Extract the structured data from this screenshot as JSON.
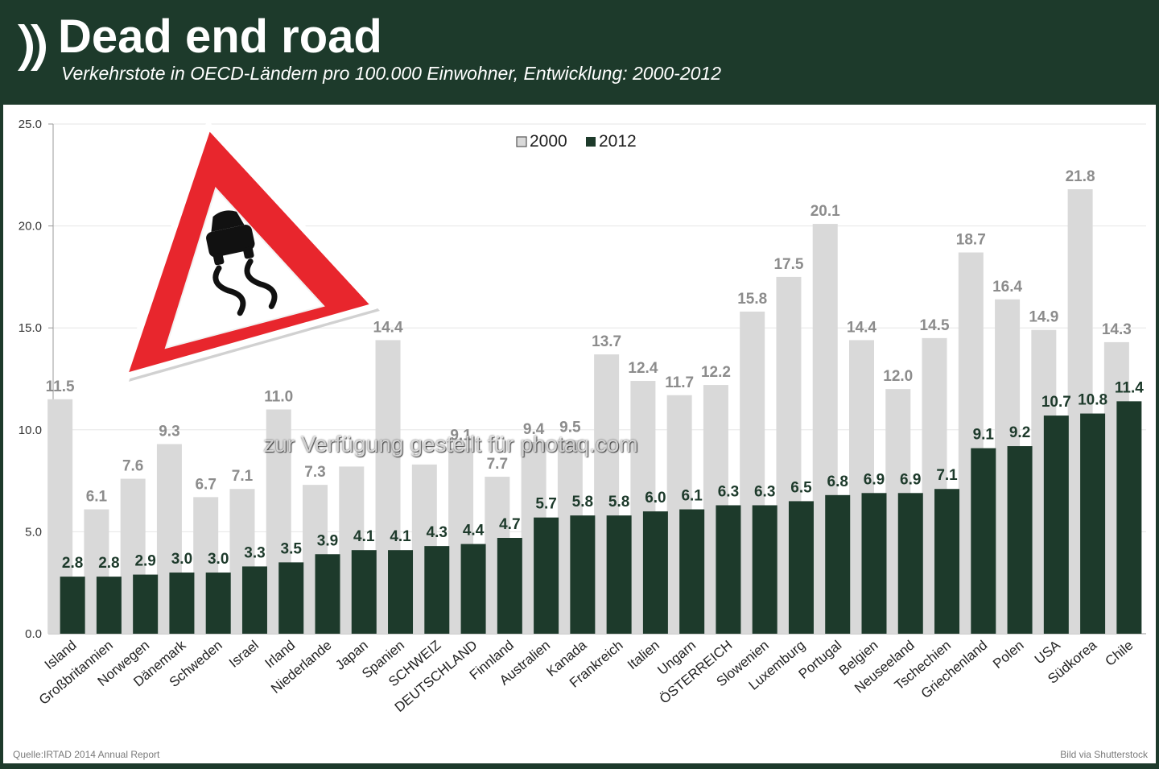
{
  "header": {
    "title": "Dead end road",
    "subtitle": "Verkehrstote in OECD-Ländern pro 100.000 Einwohner, Entwicklung: 2000-2012"
  },
  "footer": {
    "source": "Quelle:IRTAD 2014 Annual Report",
    "credit": "Bild via Shutterstock"
  },
  "watermark": "zur Verfügung gestellt für photaq.com",
  "colors": {
    "background": "#1d3a2b",
    "series_2000": "#d9d9d9",
    "series_2012": "#1d3a2b",
    "sign_red": "#e8262d"
  },
  "illustration": "slippery-road-warning-sign",
  "chart_data": {
    "type": "bar",
    "title": "Dead end road",
    "subtitle": "Verkehrstote in OECD-Ländern pro 100.000 Einwohner, Entwicklung: 2000-2012",
    "ylim": [
      0,
      25
    ],
    "yticks": [
      "0.0",
      "5.0",
      "10.0",
      "15.0",
      "20.0",
      "25.0"
    ],
    "grid": true,
    "legend_position": "top-center",
    "categories": [
      "Island",
      "Großbritannien",
      "Norwegen",
      "Dänemark",
      "Schweden",
      "Israel",
      "Irland",
      "Niederlande",
      "Japan",
      "Spanien",
      "SCHWEIZ",
      "DEUTSCHLAND",
      "Finnland",
      "Australien",
      "Kanada",
      "Frankreich",
      "Italien",
      "Ungarn",
      "ÖSTERREICH",
      "Slowenien",
      "Luxemburg",
      "Portugal",
      "Belgien",
      "Neuseeland",
      "Tschechien",
      "Griechenland",
      "Polen",
      "USA",
      "Südkorea",
      "Chile"
    ],
    "series": [
      {
        "name": "2000",
        "values": [
          11.5,
          6.1,
          7.6,
          9.3,
          6.7,
          7.1,
          11.0,
          7.3,
          8.2,
          14.4,
          8.3,
          9.1,
          7.7,
          9.4,
          9.5,
          13.7,
          12.4,
          11.7,
          12.2,
          15.8,
          17.5,
          20.1,
          14.4,
          12.0,
          14.5,
          18.7,
          16.4,
          14.9,
          21.8,
          14.3
        ],
        "labels": [
          "11.5",
          "6.1",
          "7.6",
          "9.3",
          "6.7",
          "7.1",
          "11.0",
          "7.3",
          "",
          "14.4",
          "",
          "9.1",
          "7.7",
          "9.4",
          "9.5",
          "13.7",
          "12.4",
          "11.7",
          "12.2",
          "15.8",
          "17.5",
          "20.1",
          "14.4",
          "12.0",
          "14.5",
          "18.7",
          "16.4",
          "14.9",
          "21.8",
          "14.3"
        ]
      },
      {
        "name": "2012",
        "values": [
          2.8,
          2.8,
          2.9,
          3.0,
          3.0,
          3.3,
          3.5,
          3.9,
          4.1,
          4.1,
          4.3,
          4.4,
          4.7,
          5.7,
          5.8,
          5.8,
          6.0,
          6.1,
          6.3,
          6.3,
          6.5,
          6.8,
          6.9,
          6.9,
          7.1,
          9.1,
          9.2,
          10.7,
          10.8,
          11.4
        ],
        "labels": [
          "2.8",
          "2.8",
          "2.9",
          "3.0",
          "3.0",
          "3.3",
          "3.5",
          "3.9",
          "4.1",
          "4.1",
          "4.3",
          "4.4",
          "4.7",
          "5.7",
          "5.8",
          "5.8",
          "6.0",
          "6.1",
          "6.3",
          "6.3",
          "6.5",
          "6.8",
          "6.9",
          "6.9",
          "7.1",
          "9.1",
          "9.2",
          "10.7",
          "10.8",
          "11.4"
        ]
      }
    ]
  }
}
